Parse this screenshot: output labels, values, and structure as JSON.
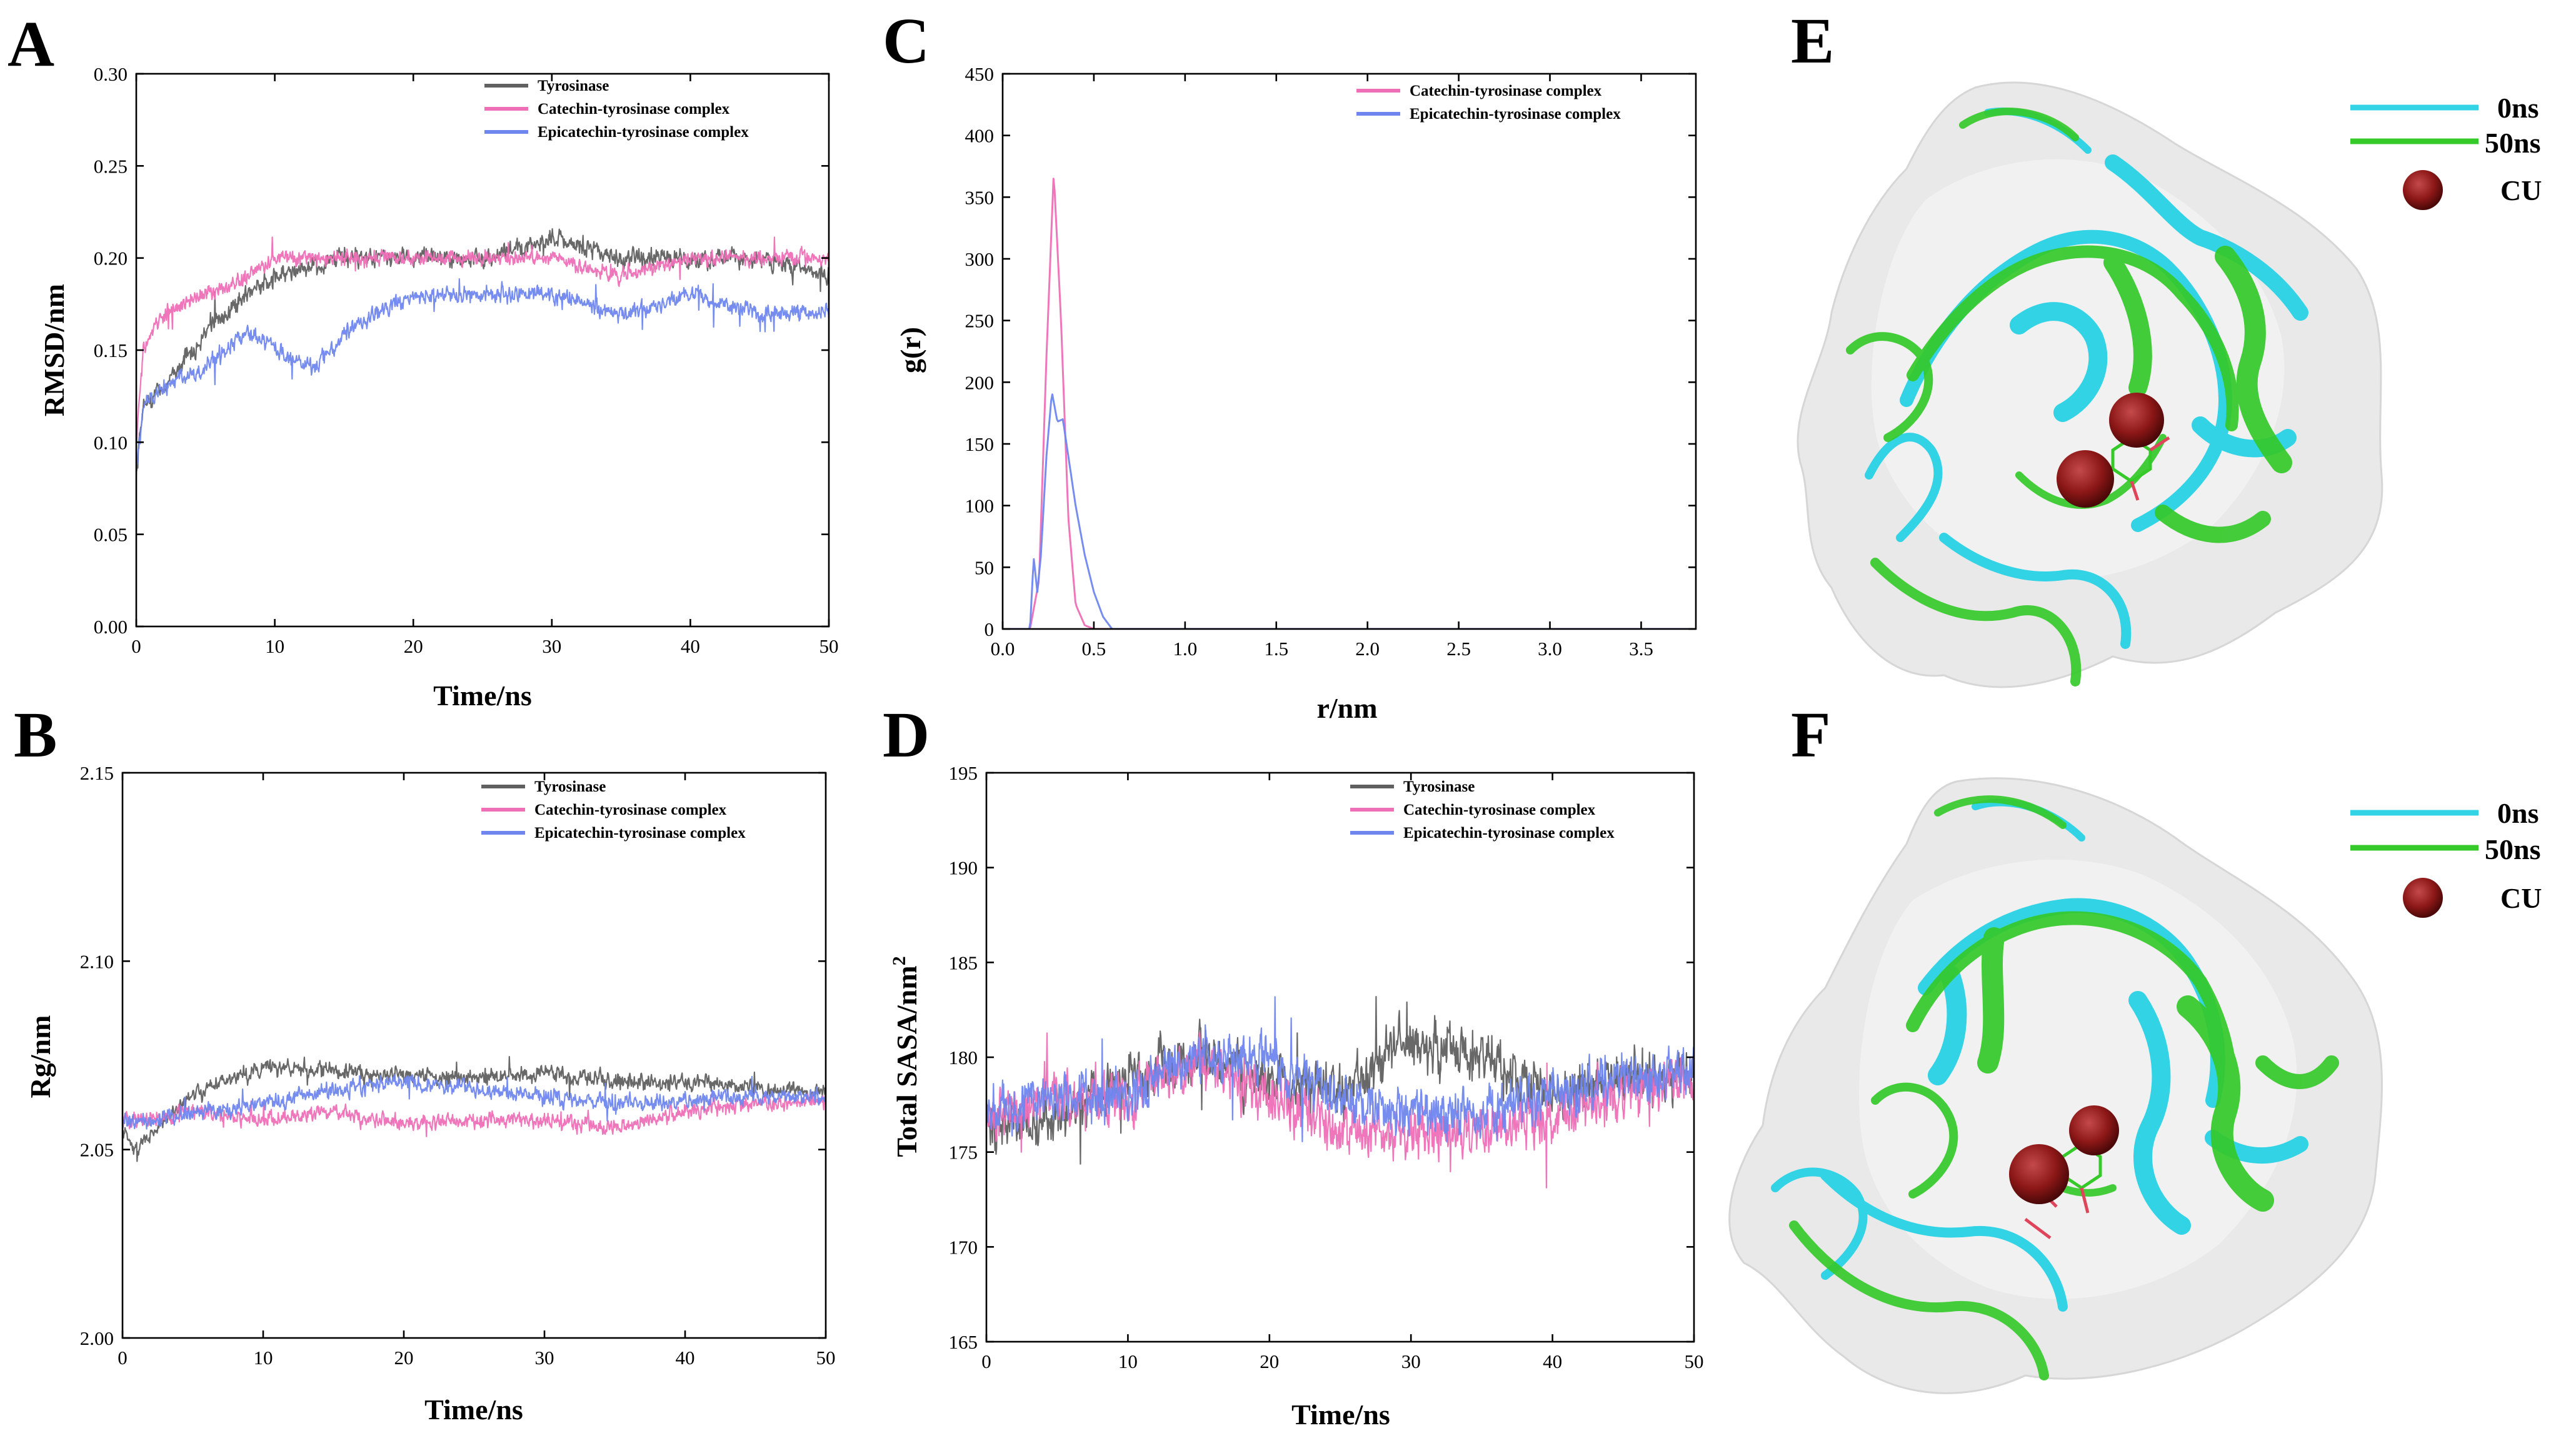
{
  "colors": {
    "tyrosinase": "#606060",
    "catechin": "#ee6fb6",
    "epicatechin": "#6f86ee",
    "cyan": "#33d3e6",
    "green": "#35c92a",
    "cu": "#8c1717"
  },
  "chart_data": [
    {
      "panel": "A",
      "type": "line",
      "xlabel": "Time/ns",
      "ylabel": "RMSD/nm",
      "xlim": [
        0,
        50
      ],
      "ylim": [
        0.0,
        0.3
      ],
      "xticks": [
        "0",
        "10",
        "20",
        "30",
        "40",
        "50"
      ],
      "yticks": [
        "0.00",
        "0.05",
        "0.10",
        "0.15",
        "0.20",
        "0.25",
        "0.30"
      ],
      "legend_position": "top-right",
      "series": [
        {
          "name": "Tyrosinase",
          "color_key": "tyrosinase",
          "x": [
            0,
            0.5,
            2,
            5,
            8,
            10,
            15,
            20,
            25,
            30,
            35,
            40,
            45,
            50
          ],
          "y": [
            0.08,
            0.12,
            0.13,
            0.16,
            0.18,
            0.19,
            0.2,
            0.2,
            0.2,
            0.21,
            0.2,
            0.2,
            0.2,
            0.19
          ],
          "noise": 0.012
        },
        {
          "name": "Catechin-tyrosinase complex",
          "color_key": "catechin",
          "x": [
            0,
            0.5,
            2,
            5,
            8,
            10,
            15,
            20,
            25,
            30,
            35,
            40,
            45,
            50
          ],
          "y": [
            0.1,
            0.15,
            0.17,
            0.18,
            0.19,
            0.2,
            0.2,
            0.2,
            0.2,
            0.2,
            0.19,
            0.2,
            0.2,
            0.2
          ],
          "noise": 0.01
        },
        {
          "name": "Epicatechin-tyrosinase complex",
          "color_key": "epicatechin",
          "x": [
            0,
            0.5,
            2,
            5,
            8,
            10,
            13,
            15,
            20,
            25,
            30,
            35,
            40,
            45,
            50
          ],
          "y": [
            0.08,
            0.12,
            0.13,
            0.14,
            0.16,
            0.15,
            0.14,
            0.16,
            0.18,
            0.18,
            0.18,
            0.17,
            0.18,
            0.17,
            0.17
          ],
          "noise": 0.011
        }
      ]
    },
    {
      "panel": "B",
      "type": "line",
      "xlabel": "Time/ns",
      "ylabel": "Rg/nm",
      "xlim": [
        0,
        50
      ],
      "ylim": [
        2.0,
        2.15
      ],
      "xticks": [
        "0",
        "10",
        "20",
        "30",
        "40",
        "50"
      ],
      "yticks": [
        "2.00",
        "2.05",
        "2.10",
        "2.15"
      ],
      "legend_position": "top-right",
      "series": [
        {
          "name": "Tyrosinase",
          "color_key": "tyrosinase",
          "x": [
            0,
            1,
            5,
            10,
            15,
            20,
            25,
            30,
            35,
            40,
            45,
            50
          ],
          "y": [
            2.055,
            2.05,
            2.065,
            2.072,
            2.071,
            2.07,
            2.069,
            2.07,
            2.068,
            2.068,
            2.066,
            2.066
          ],
          "noise": 0.005
        },
        {
          "name": "Catechin-tyrosinase complex",
          "color_key": "catechin",
          "x": [
            0,
            1,
            5,
            10,
            15,
            20,
            25,
            30,
            35,
            40,
            45,
            50
          ],
          "y": [
            2.058,
            2.058,
            2.06,
            2.058,
            2.06,
            2.057,
            2.058,
            2.058,
            2.056,
            2.06,
            2.062,
            2.063
          ],
          "noise": 0.005
        },
        {
          "name": "Epicatechin-tyrosinase complex",
          "color_key": "epicatechin",
          "x": [
            0,
            1,
            5,
            10,
            15,
            20,
            25,
            30,
            35,
            40,
            45,
            50
          ],
          "y": [
            2.058,
            2.057,
            2.06,
            2.062,
            2.066,
            2.068,
            2.066,
            2.064,
            2.062,
            2.063,
            2.064,
            2.064
          ],
          "noise": 0.005
        }
      ]
    },
    {
      "panel": "C",
      "type": "line",
      "xlabel": "r/nm",
      "ylabel": "g(r)",
      "xlim": [
        0,
        3.8
      ],
      "ylim": [
        0,
        450
      ],
      "xticks": [
        "0.0",
        "0.5",
        "1.0",
        "1.5",
        "2.0",
        "2.5",
        "3.0",
        "3.5"
      ],
      "yticks": [
        "0",
        "50",
        "100",
        "150",
        "200",
        "250",
        "300",
        "350",
        "400",
        "450"
      ],
      "legend_position": "top-right",
      "series": [
        {
          "name": "Catechin-tyrosinase complex",
          "color_key": "catechin",
          "x": [
            0,
            0.15,
            0.2,
            0.24,
            0.28,
            0.32,
            0.36,
            0.4,
            0.45,
            0.5,
            1.0,
            3.8
          ],
          "y": [
            0,
            0,
            40,
            220,
            370,
            250,
            90,
            20,
            3,
            0,
            0,
            0
          ]
        },
        {
          "name": "Epicatechin-tyrosinase complex",
          "color_key": "epicatechin",
          "x": [
            0,
            0.15,
            0.17,
            0.19,
            0.21,
            0.24,
            0.27,
            0.3,
            0.33,
            0.36,
            0.4,
            0.45,
            0.5,
            0.55,
            0.6,
            1.0,
            3.8
          ],
          "y": [
            0,
            0,
            58,
            30,
            60,
            140,
            192,
            168,
            170,
            140,
            100,
            60,
            30,
            10,
            0,
            0,
            0
          ]
        }
      ]
    },
    {
      "panel": "D",
      "type": "line",
      "xlabel": "Time/ns",
      "ylabel": "Total SASA/nm",
      "ylabel_superscript": "2",
      "xlim": [
        0,
        50
      ],
      "ylim": [
        165,
        195
      ],
      "xticks": [
        "0",
        "10",
        "20",
        "30",
        "40",
        "50"
      ],
      "yticks": [
        "165",
        "170",
        "175",
        "180",
        "185",
        "190",
        "195"
      ],
      "legend_position": "top-right",
      "series": [
        {
          "name": "Tyrosinase",
          "color_key": "tyrosinase",
          "x": [
            0,
            5,
            10,
            15,
            20,
            25,
            30,
            35,
            40,
            45,
            50
          ],
          "y": [
            176,
            177,
            179,
            180,
            179,
            178,
            181,
            180,
            178,
            179,
            179
          ],
          "noise": 3.2
        },
        {
          "name": "Catechin-tyrosinase complex",
          "color_key": "catechin",
          "x": [
            0,
            5,
            10,
            15,
            20,
            25,
            30,
            35,
            40,
            45,
            50
          ],
          "y": [
            177,
            178,
            178,
            180,
            178,
            176,
            176,
            176,
            177,
            178,
            179
          ],
          "noise": 3.2
        },
        {
          "name": "Epicatechin-tyrosinase complex",
          "color_key": "epicatechin",
          "x": [
            0,
            5,
            10,
            15,
            20,
            25,
            30,
            35,
            40,
            45,
            50
          ],
          "y": [
            177,
            178,
            178,
            180,
            180,
            178,
            177,
            177,
            178,
            179,
            179
          ],
          "noise": 3.0
        }
      ]
    }
  ],
  "structures": [
    {
      "panel": "E",
      "legend": [
        "0ns",
        "50ns",
        "CU"
      ]
    },
    {
      "panel": "F",
      "legend": [
        "0ns",
        "50ns",
        "CU"
      ]
    }
  ]
}
